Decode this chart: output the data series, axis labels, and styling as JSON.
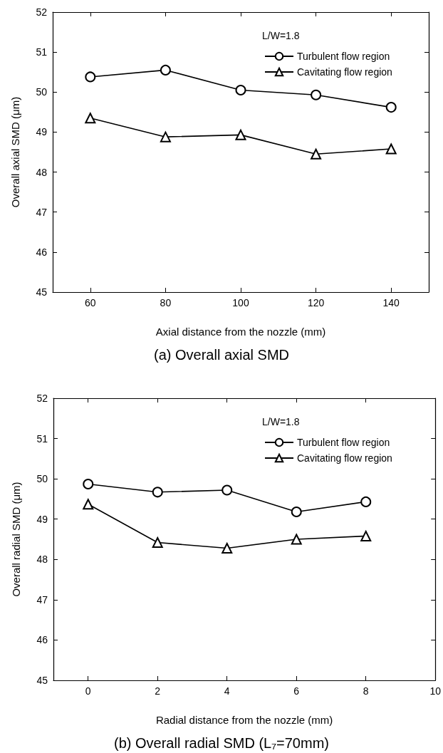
{
  "chart_data": [
    {
      "type": "line",
      "title": "(a) Overall axial SMD",
      "xlabel": "Axial distance from the nozzle (mm)",
      "ylabel": "Overall axial SMD (μm)",
      "legend_title": "L/W=1.8",
      "x": [
        60,
        80,
        100,
        120,
        140
      ],
      "series": [
        {
          "name": "Turbulent flow region",
          "color": "#000000",
          "marker": "circle",
          "values": [
            50.38,
            50.55,
            50.05,
            49.93,
            49.62
          ]
        },
        {
          "name": "Cavitating flow region",
          "color": "#000000",
          "marker": "triangle",
          "values": [
            49.35,
            48.88,
            48.93,
            48.45,
            48.58
          ]
        }
      ],
      "xlim": [
        50,
        150
      ],
      "xticks": [
        60,
        80,
        100,
        120,
        140
      ],
      "ylim": [
        45,
        52
      ],
      "yticks": [
        45,
        46,
        47,
        48,
        49,
        50,
        51,
        52
      ],
      "legend": "top right",
      "grid": false,
      "line_style": "solid"
    },
    {
      "type": "line",
      "title": "(b) Overall radial SMD (L₇=70mm)",
      "xlabel": "Radial distance from the nozzle (mm)",
      "ylabel": "Overall radial SMD (μm)",
      "legend_title": "L/W=1.8",
      "x": [
        0,
        2,
        4,
        6,
        8
      ],
      "series": [
        {
          "name": "Turbulent flow region",
          "color": "#000000",
          "marker": "circle",
          "values": [
            49.87,
            49.67,
            49.72,
            49.18,
            49.43
          ]
        },
        {
          "name": "Cavitating flow region",
          "color": "#000000",
          "marker": "triangle",
          "values": [
            49.37,
            48.42,
            48.28,
            48.5,
            48.58
          ]
        }
      ],
      "xlim": [
        -1,
        10
      ],
      "xticks": [
        0,
        2,
        4,
        6,
        8,
        10
      ],
      "ylim": [
        45,
        52
      ],
      "yticks": [
        45,
        46,
        47,
        48,
        49,
        50,
        51,
        52
      ],
      "legend": "top right",
      "grid": false,
      "line_style": "solid"
    }
  ]
}
